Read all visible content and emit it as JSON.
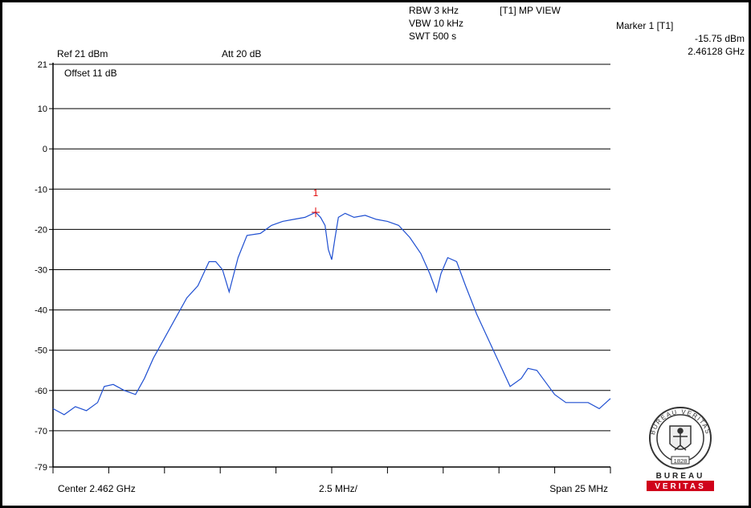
{
  "header": {
    "rbw": "RBW 3 kHz",
    "vbw": "VBW 10 kHz",
    "swt": "SWT 500 s",
    "view": "[T1] MP VIEW",
    "ref": "Ref 21 dBm",
    "att": "Att 20 dB",
    "offset": "Offset 11 dB"
  },
  "marker": {
    "title": "Marker 1 [T1]",
    "level": "-15.75 dBm",
    "freq": "2.46128 GHz",
    "label": "1"
  },
  "footer": {
    "center": "Center 2.462 GHz",
    "div": "2.5 MHz/",
    "span": "Span 25 MHz"
  },
  "logo": {
    "ring_text": "BUREAU VERITAS",
    "year": "1828",
    "word1": "BUREAU",
    "word2": "VERITAS"
  },
  "chart_data": {
    "type": "line",
    "title": "",
    "xlabel": "",
    "ylabel": "",
    "xlim_mhz": [
      2449.5,
      2474.5
    ],
    "ylim": [
      -79,
      21
    ],
    "y_ticks": [
      21,
      10,
      0,
      -10,
      -20,
      -30,
      -40,
      -50,
      -60,
      -70,
      -79
    ],
    "grid": true,
    "trace_color": "#1f4fd1",
    "marker_color": "#e00000",
    "marker_point": {
      "x": 2461.28,
      "y": -15.75
    },
    "series": [
      {
        "x": [
          2449.5,
          2450.0,
          2450.5,
          2451.0,
          2451.5,
          2451.8,
          2452.2,
          2452.7,
          2453.2,
          2453.6,
          2454.0,
          2454.5,
          2455.0,
          2455.5,
          2456.0,
          2456.5,
          2456.8,
          2457.1,
          2457.4,
          2457.8,
          2458.2,
          2458.8,
          2459.3,
          2459.8,
          2460.3,
          2460.8,
          2461.28,
          2461.5,
          2461.7,
          2461.85,
          2462.0,
          2462.15,
          2462.3,
          2462.6,
          2463.0,
          2463.5,
          2464.0,
          2464.5,
          2465.0,
          2465.5,
          2466.0,
          2466.4,
          2466.7,
          2466.9,
          2467.2,
          2467.6,
          2468.0,
          2468.5,
          2469.0,
          2469.5,
          2470.0,
          2470.5,
          2470.8,
          2471.2,
          2471.6,
          2472.0,
          2472.5,
          2473.0,
          2473.5,
          2474.0,
          2474.5
        ],
        "y": [
          -64.5,
          -66,
          -64,
          -65,
          -63,
          -59,
          -58.5,
          -60,
          -61,
          -57,
          -52,
          -47,
          -42,
          -37,
          -34,
          -28,
          -28,
          -30,
          -35.5,
          -27,
          -21.5,
          -21,
          -19,
          -18,
          -17.5,
          -17,
          -15.75,
          -17,
          -19,
          -25,
          -27.5,
          -22,
          -17,
          -16,
          -17,
          -16.5,
          -17.5,
          -18,
          -19,
          -22,
          -26,
          -31,
          -35.5,
          -31,
          -27,
          -28,
          -34,
          -41,
          -47,
          -53,
          -59,
          -57,
          -54.5,
          -55,
          -58,
          -61,
          -63,
          -63,
          -63,
          -64.5,
          -62
        ]
      }
    ]
  }
}
